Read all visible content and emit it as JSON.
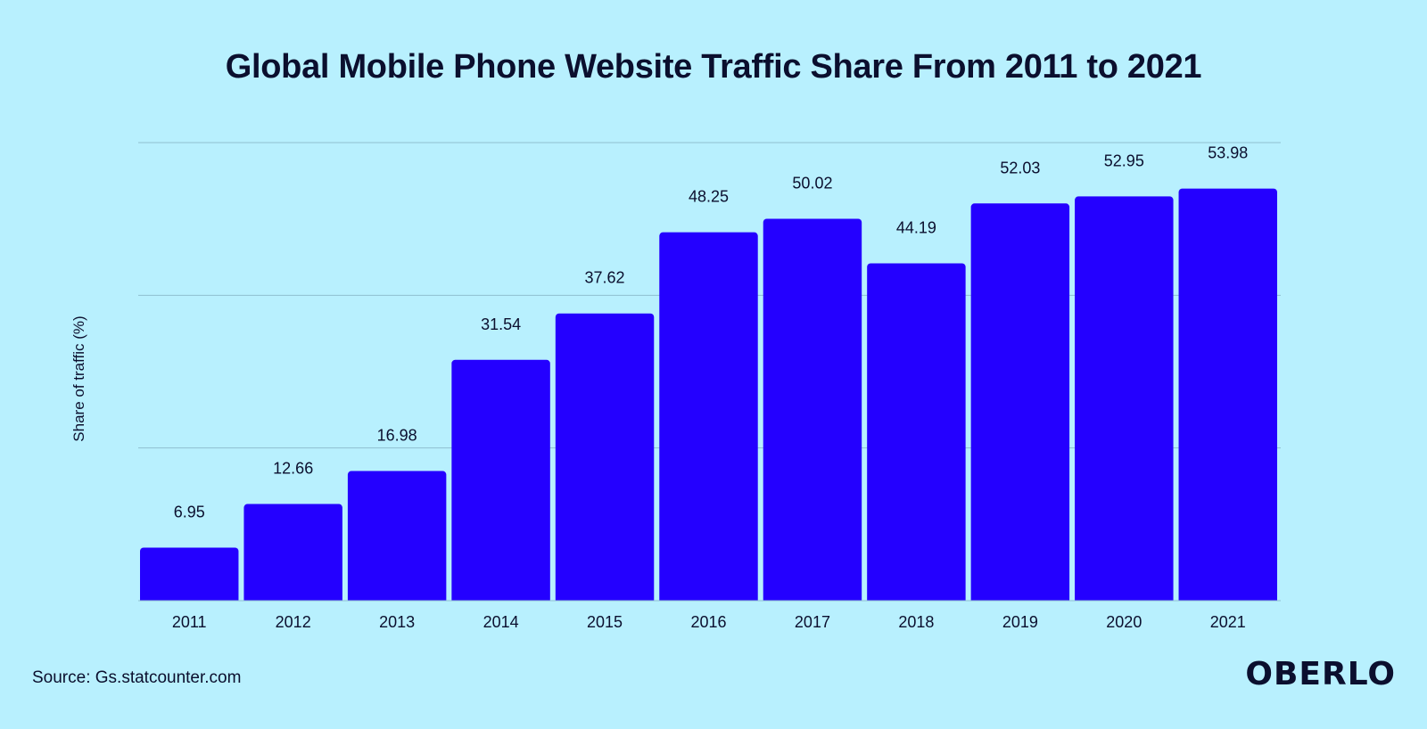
{
  "title": "Global Mobile Phone Website Traffic Share From 2011 to 2021",
  "source": "Source: Gs.statcounter.com",
  "brand": "OBERLO",
  "colors": {
    "background": "#b8f0fe",
    "bar": "#2400ff",
    "text": "#0b0f2e",
    "gridline": "#8fbfd0"
  },
  "chart_data": {
    "type": "bar",
    "title": "Global Mobile Phone Website Traffic Share From 2011 to 2021",
    "xlabel": "",
    "ylabel": "Share of traffic (%)",
    "categories": [
      "2011",
      "2012",
      "2013",
      "2014",
      "2015",
      "2016",
      "2017",
      "2018",
      "2019",
      "2020",
      "2021"
    ],
    "values": [
      6.95,
      12.66,
      16.98,
      31.54,
      37.62,
      48.25,
      50.02,
      44.19,
      52.03,
      52.95,
      53.98
    ],
    "value_labels": [
      "6.95",
      "12.66",
      "16.98",
      "31.54",
      "37.62",
      "48.25",
      "50.02",
      "44.19",
      "52.03",
      "52.95",
      "53.98"
    ],
    "ylim": [
      0,
      60
    ],
    "gridlines": [
      20,
      40,
      60
    ],
    "grid": true,
    "y_tick_labels_shown": false,
    "legend": "none"
  }
}
